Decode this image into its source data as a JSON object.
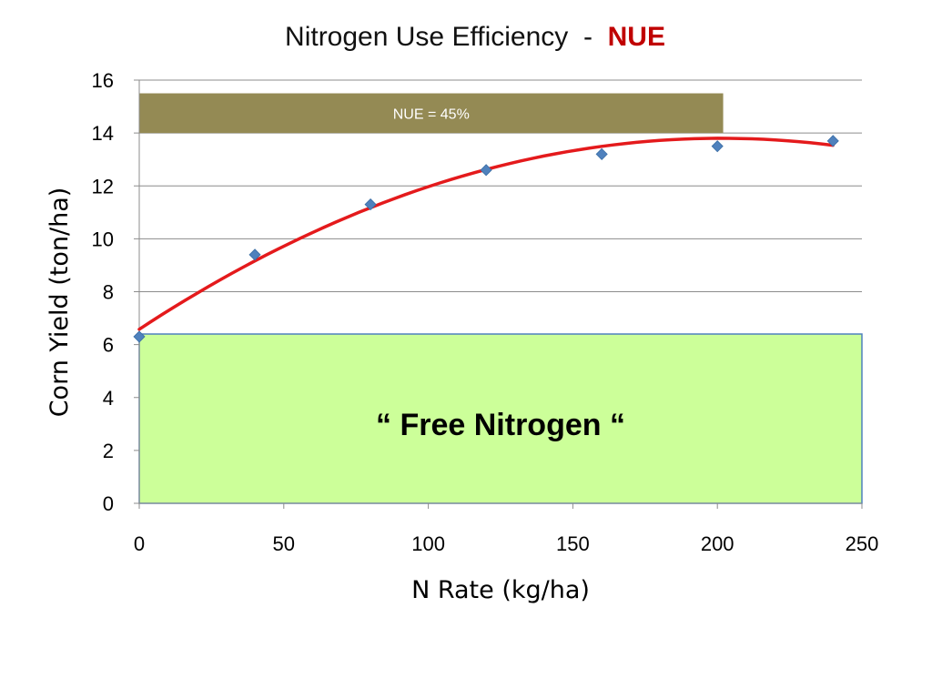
{
  "slide": {
    "title_main": "Nitrogen Use Efficiency  -  ",
    "title_accent": "NUE"
  },
  "chart_data": {
    "type": "scatter",
    "xlabel": "N Rate   (kg/ha)",
    "ylabel": "Corn  Yield   (ton/ha)",
    "xlim": [
      0,
      250
    ],
    "ylim": [
      0,
      16
    ],
    "x_ticks": [
      0,
      50,
      100,
      150,
      200,
      250
    ],
    "y_ticks": [
      0,
      2,
      4,
      6,
      8,
      10,
      12,
      14,
      16
    ],
    "grid": true,
    "points": [
      {
        "x": 0,
        "y": 6.3
      },
      {
        "x": 40,
        "y": 9.4
      },
      {
        "x": 80,
        "y": 11.3
      },
      {
        "x": 120,
        "y": 12.6
      },
      {
        "x": 160,
        "y": 13.2
      },
      {
        "x": 200,
        "y": 13.5
      },
      {
        "x": 240,
        "y": 13.7
      }
    ],
    "trendline": {
      "type": "polynomial-2",
      "x_range": [
        0,
        240
      ],
      "coefficients": [
        6.58,
        0.0717,
        -0.000178
      ],
      "color": "#e41a1c"
    },
    "marker_color": "#4f81bd",
    "annotations": {
      "nue_band": {
        "label": "NUE = 45%",
        "x_range": [
          0,
          202
        ],
        "y_range": [
          14,
          15.5
        ],
        "color": "#948a54"
      },
      "free_n_box": {
        "label": "“ Free Nitrogen “",
        "x_range": [
          0,
          250
        ],
        "y_range": [
          0,
          6.4
        ],
        "color": "#ccff99",
        "border": "#4f81bd"
      }
    }
  }
}
